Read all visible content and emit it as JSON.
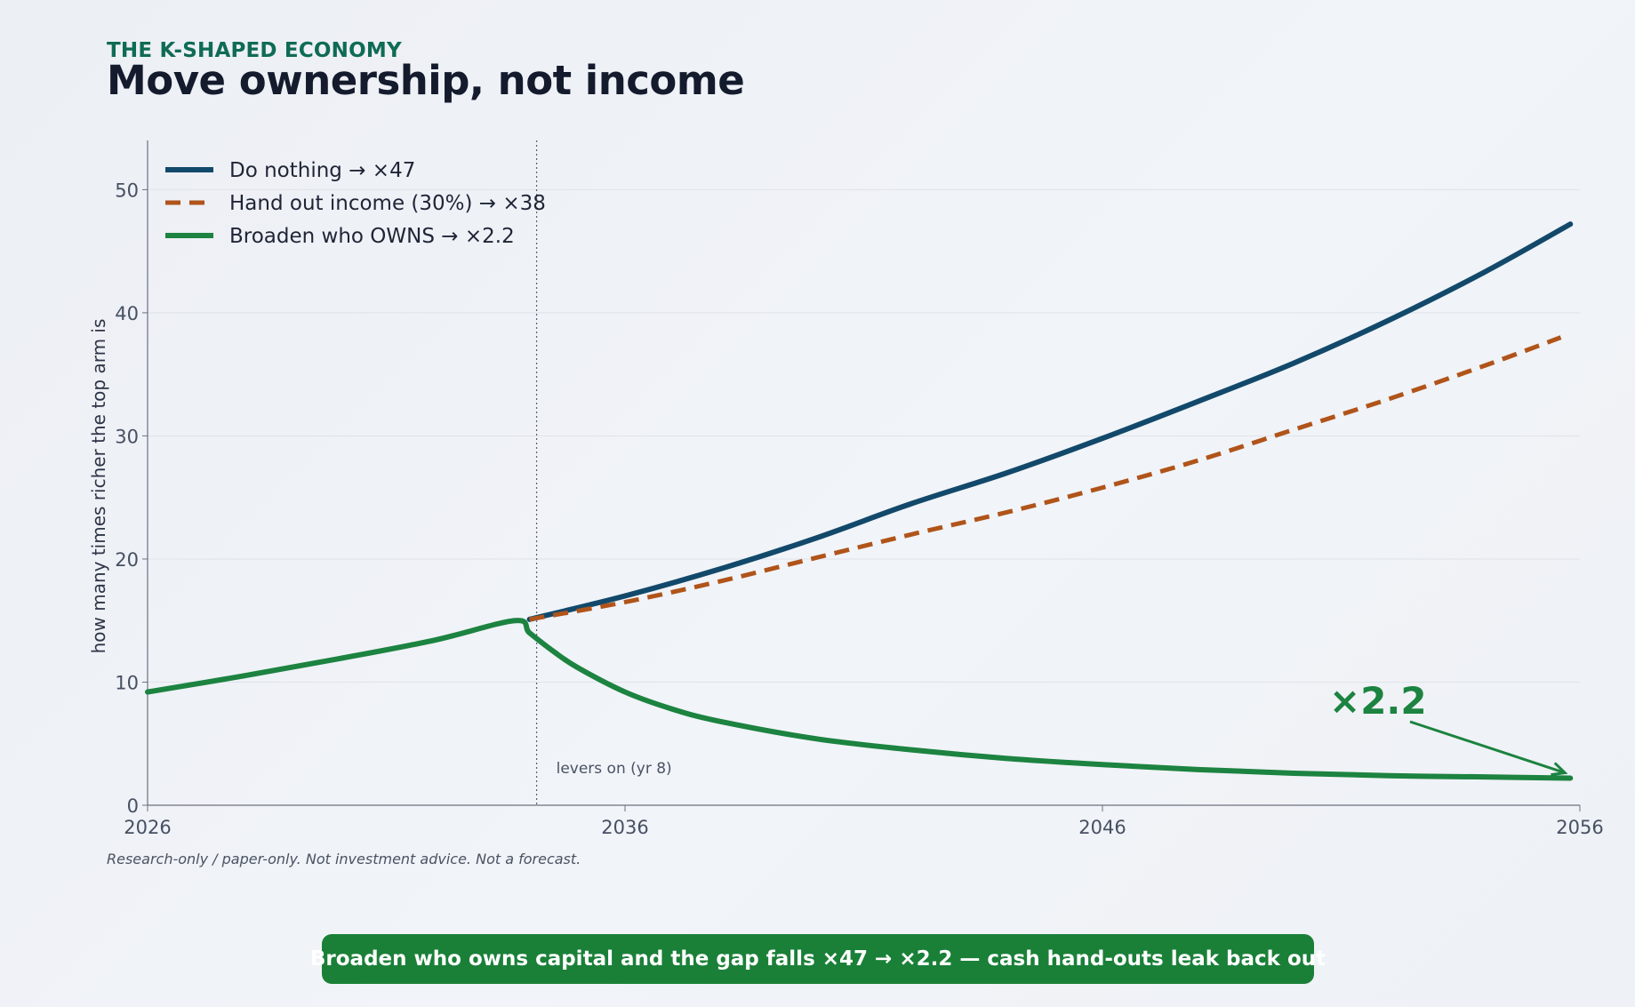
{
  "header": {
    "eyebrow": "THE K-SHAPED ECONOMY",
    "title": "Move ownership, not income"
  },
  "footer": {
    "disclaimer": "Research-only / paper-only.  Not investment advice.  Not a forecast.",
    "banner": "Broaden who owns capital and the gap falls  ×47 → ×2.2  — cash hand-outs leak back out"
  },
  "colors": {
    "do_nothing": "#12496b",
    "hand_out": "#b0541a",
    "owns": "#1c8340",
    "accent": "#0f6b55"
  },
  "chart_data": {
    "type": "line",
    "title": "",
    "xlabel": "",
    "ylabel": "how many times richer the top arm is",
    "xlim": [
      2026,
      2056
    ],
    "ylim": [
      0,
      54
    ],
    "x_ticks": [
      2026,
      2036,
      2046,
      2056
    ],
    "y_ticks": [
      0,
      10,
      20,
      30,
      40,
      50
    ],
    "grid": true,
    "legend_position": "top-left",
    "vline": {
      "x": 2034,
      "label": "levers on (yr 8)"
    },
    "series": [
      {
        "name": "Do nothing  →  ×47",
        "style": "solid",
        "color": "#12496b",
        "x": [
          2034,
          2036,
          2038,
          2040,
          2042,
          2044,
          2046,
          2048,
          2050,
          2052,
          2054,
          2055.8
        ],
        "y": [
          15.1,
          17.0,
          19.2,
          21.7,
          24.5,
          27.0,
          29.8,
          32.8,
          35.9,
          39.4,
          43.3,
          47.2
        ]
      },
      {
        "name": "Hand out income (30%)  →  ×38",
        "style": "dashed",
        "color": "#b0541a",
        "x": [
          2034,
          2036,
          2038,
          2040,
          2042,
          2044,
          2046,
          2048,
          2050,
          2052,
          2054,
          2055.6
        ],
        "y": [
          15.1,
          16.5,
          18.2,
          20.1,
          22.0,
          23.8,
          25.8,
          28.0,
          30.5,
          33.0,
          35.7,
          38.0
        ]
      },
      {
        "name": "Broaden who OWNS  →  ×2.2",
        "style": "solid",
        "color": "#1c8340",
        "x": [
          2026,
          2028,
          2030,
          2032,
          2033.7,
          2034,
          2034.5,
          2035,
          2036,
          2037,
          2038,
          2040,
          2042,
          2044,
          2046,
          2048,
          2050,
          2052,
          2054,
          2055.8
        ],
        "y": [
          9.2,
          10.5,
          11.9,
          13.4,
          15.0,
          14.0,
          12.5,
          11.2,
          9.2,
          7.8,
          6.8,
          5.4,
          4.5,
          3.8,
          3.3,
          2.9,
          2.6,
          2.4,
          2.3,
          2.2
        ]
      }
    ],
    "annotations": [
      {
        "text": "×2.2",
        "x": 2056,
        "y": 2.2
      }
    ]
  }
}
